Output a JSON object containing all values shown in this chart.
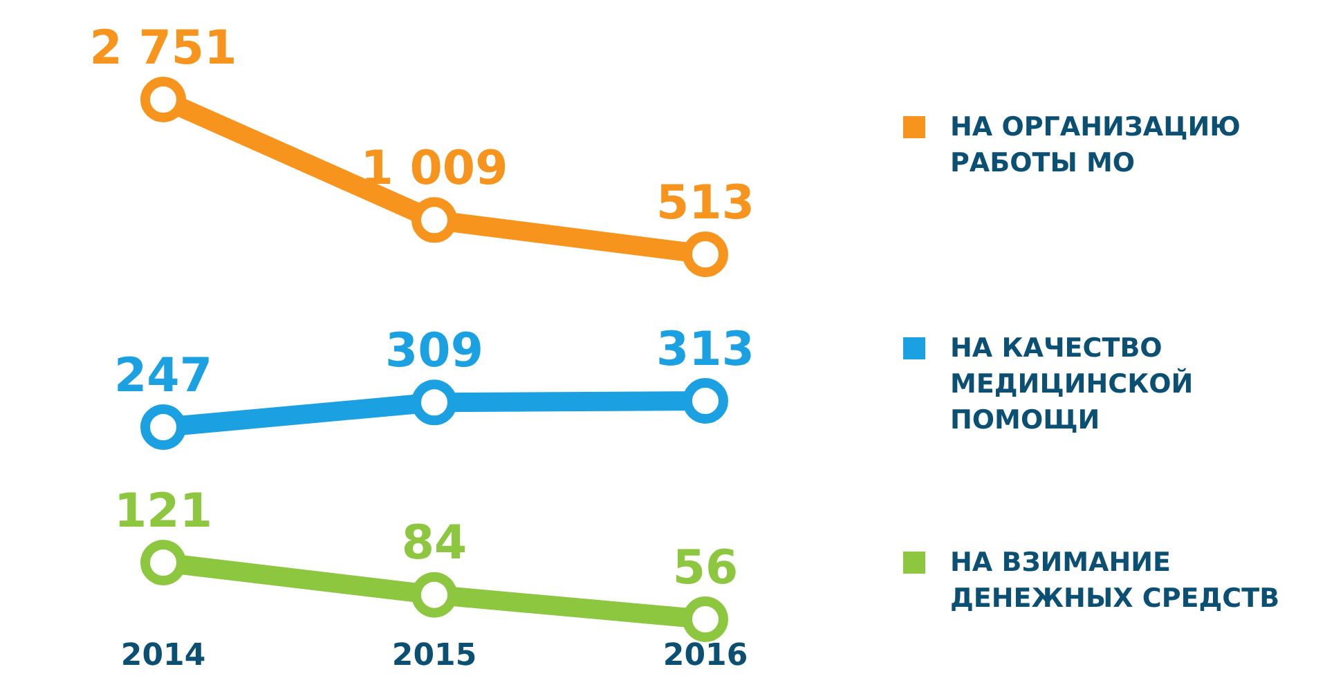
{
  "chart_data": [
    {
      "type": "line",
      "categories": [
        "2014",
        "2015",
        "2016"
      ],
      "series": [
        {
          "name": "НА ОРГАНИЗАЦИЮ РАБОТЫ МО",
          "color": "#f7941d",
          "values": [
            2751,
            1009,
            513
          ],
          "value_labels": [
            "2 751",
            "1 009",
            "513"
          ]
        }
      ],
      "marker": "circle",
      "legend": "right",
      "tick_labels": false
    },
    {
      "type": "line",
      "categories": [
        "2014",
        "2015",
        "2016"
      ],
      "series": [
        {
          "name": "НА КАЧЕСТВО МЕДИЦИНСКОЙ ПОМОЩИ",
          "color": "#1ba1e2",
          "values": [
            247,
            309,
            313
          ]
        }
      ],
      "data_labels": true,
      "marker": "circle",
      "legend": "right",
      "tick_labels": false
    },
    {
      "type": "line",
      "categories": [
        "2014",
        "2015",
        "2016"
      ],
      "series": [
        {
          "name": "НА ВЗИМАНИЕ ДЕНЕЖНЫХ СРЕДСТВ",
          "color": "#8dc63f",
          "values": [
            121,
            84,
            56
          ]
        }
      ],
      "data_labels": true,
      "marker": "circle",
      "legend": "right",
      "tick_labels": "x"
    }
  ]
}
